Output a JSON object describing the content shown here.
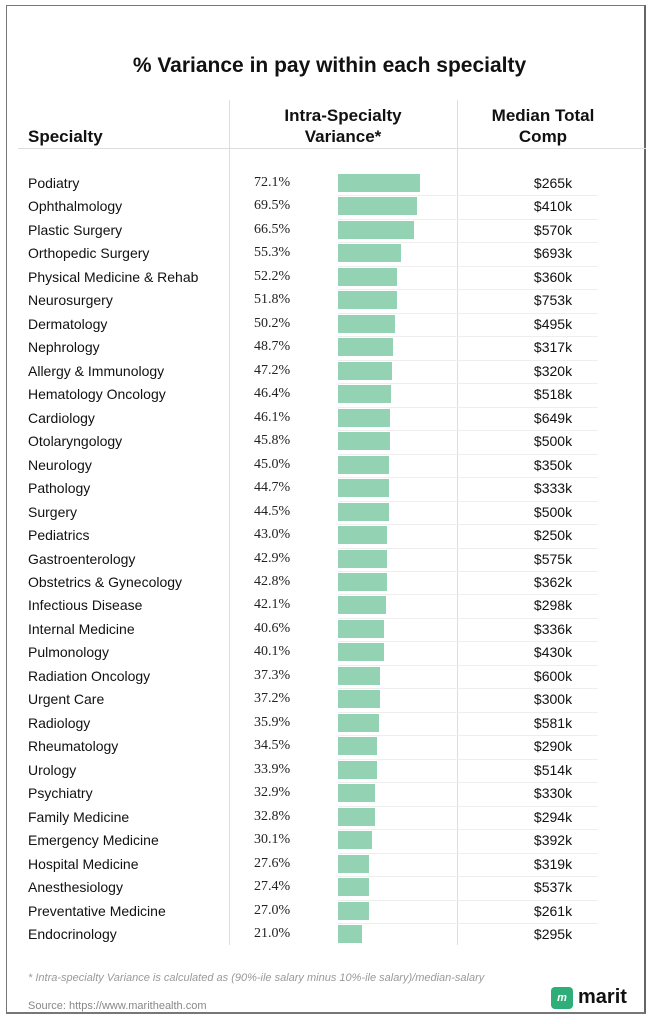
{
  "chart_data": {
    "type": "table",
    "title": "% Variance in pay within each specialty",
    "columns": [
      "Specialty",
      "Intra-Specialty Variance*",
      "Median Total Comp"
    ],
    "rows": [
      {
        "specialty": "Podiatry",
        "variance": 72.1,
        "variance_label": "72.1%",
        "comp": "$265k"
      },
      {
        "specialty": "Ophthalmology",
        "variance": 69.5,
        "variance_label": "69.5%",
        "comp": "$410k"
      },
      {
        "specialty": "Plastic Surgery",
        "variance": 66.5,
        "variance_label": "66.5%",
        "comp": "$570k"
      },
      {
        "specialty": "Orthopedic Surgery",
        "variance": 55.3,
        "variance_label": "55.3%",
        "comp": "$693k"
      },
      {
        "specialty": "Physical Medicine & Rehab",
        "variance": 52.2,
        "variance_label": "52.2%",
        "comp": "$360k"
      },
      {
        "specialty": "Neurosurgery",
        "variance": 51.8,
        "variance_label": "51.8%",
        "comp": "$753k"
      },
      {
        "specialty": "Dermatology",
        "variance": 50.2,
        "variance_label": "50.2%",
        "comp": "$495k"
      },
      {
        "specialty": "Nephrology",
        "variance": 48.7,
        "variance_label": "48.7%",
        "comp": "$317k"
      },
      {
        "specialty": "Allergy & Immunology",
        "variance": 47.2,
        "variance_label": "47.2%",
        "comp": "$320k"
      },
      {
        "specialty": "Hematology Oncology",
        "variance": 46.4,
        "variance_label": "46.4%",
        "comp": "$518k"
      },
      {
        "specialty": "Cardiology",
        "variance": 46.1,
        "variance_label": "46.1%",
        "comp": "$649k"
      },
      {
        "specialty": "Otolaryngology",
        "variance": 45.8,
        "variance_label": "45.8%",
        "comp": "$500k"
      },
      {
        "specialty": "Neurology",
        "variance": 45.0,
        "variance_label": "45.0%",
        "comp": "$350k"
      },
      {
        "specialty": "Pathology",
        "variance": 44.7,
        "variance_label": "44.7%",
        "comp": "$333k"
      },
      {
        "specialty": "Surgery",
        "variance": 44.5,
        "variance_label": "44.5%",
        "comp": "$500k"
      },
      {
        "specialty": "Pediatrics",
        "variance": 43.0,
        "variance_label": "43.0%",
        "comp": "$250k"
      },
      {
        "specialty": "Gastroenterology",
        "variance": 42.9,
        "variance_label": "42.9%",
        "comp": "$575k"
      },
      {
        "specialty": "Obstetrics & Gynecology",
        "variance": 42.8,
        "variance_label": "42.8%",
        "comp": "$362k"
      },
      {
        "specialty": "Infectious Disease",
        "variance": 42.1,
        "variance_label": "42.1%",
        "comp": "$298k"
      },
      {
        "specialty": "Internal Medicine",
        "variance": 40.6,
        "variance_label": "40.6%",
        "comp": "$336k"
      },
      {
        "specialty": "Pulmonology",
        "variance": 40.1,
        "variance_label": "40.1%",
        "comp": "$430k"
      },
      {
        "specialty": "Radiation Oncology",
        "variance": 37.3,
        "variance_label": "37.3%",
        "comp": "$600k"
      },
      {
        "specialty": "Urgent Care",
        "variance": 37.2,
        "variance_label": "37.2%",
        "comp": "$300k"
      },
      {
        "specialty": "Radiology",
        "variance": 35.9,
        "variance_label": "35.9%",
        "comp": "$581k"
      },
      {
        "specialty": "Rheumatology",
        "variance": 34.5,
        "variance_label": "34.5%",
        "comp": "$290k"
      },
      {
        "specialty": "Urology",
        "variance": 33.9,
        "variance_label": "33.9%",
        "comp": "$514k"
      },
      {
        "specialty": "Psychiatry",
        "variance": 32.9,
        "variance_label": "32.9%",
        "comp": "$330k"
      },
      {
        "specialty": "Family Medicine",
        "variance": 32.8,
        "variance_label": "32.8%",
        "comp": "$294k"
      },
      {
        "specialty": "Emergency Medicine",
        "variance": 30.1,
        "variance_label": "30.1%",
        "comp": "$392k"
      },
      {
        "specialty": "Hospital Medicine",
        "variance": 27.6,
        "variance_label": "27.6%",
        "comp": "$319k"
      },
      {
        "specialty": "Anesthesiology",
        "variance": 27.4,
        "variance_label": "27.4%",
        "comp": "$537k"
      },
      {
        "specialty": "Preventative Medicine",
        "variance": 27.0,
        "variance_label": "27.0%",
        "comp": "$261k"
      },
      {
        "specialty": "Endocrinology",
        "variance": 21.0,
        "variance_label": "21.0%",
        "comp": "$295k"
      }
    ],
    "bar_color": "#93d3b4",
    "footnote": "* Intra-specialty Variance is calculated as (90%-ile salary minus 10%-ile salary)/median-salary",
    "source": "Source: https://www.marithealth.com"
  },
  "header": {
    "specialty": "Specialty",
    "variance_line1": "Intra-Specialty",
    "variance_line2": "Variance*",
    "comp_line1": "Median Total",
    "comp_line2": "Comp"
  },
  "logo": {
    "text": "marit",
    "mark": "m"
  }
}
